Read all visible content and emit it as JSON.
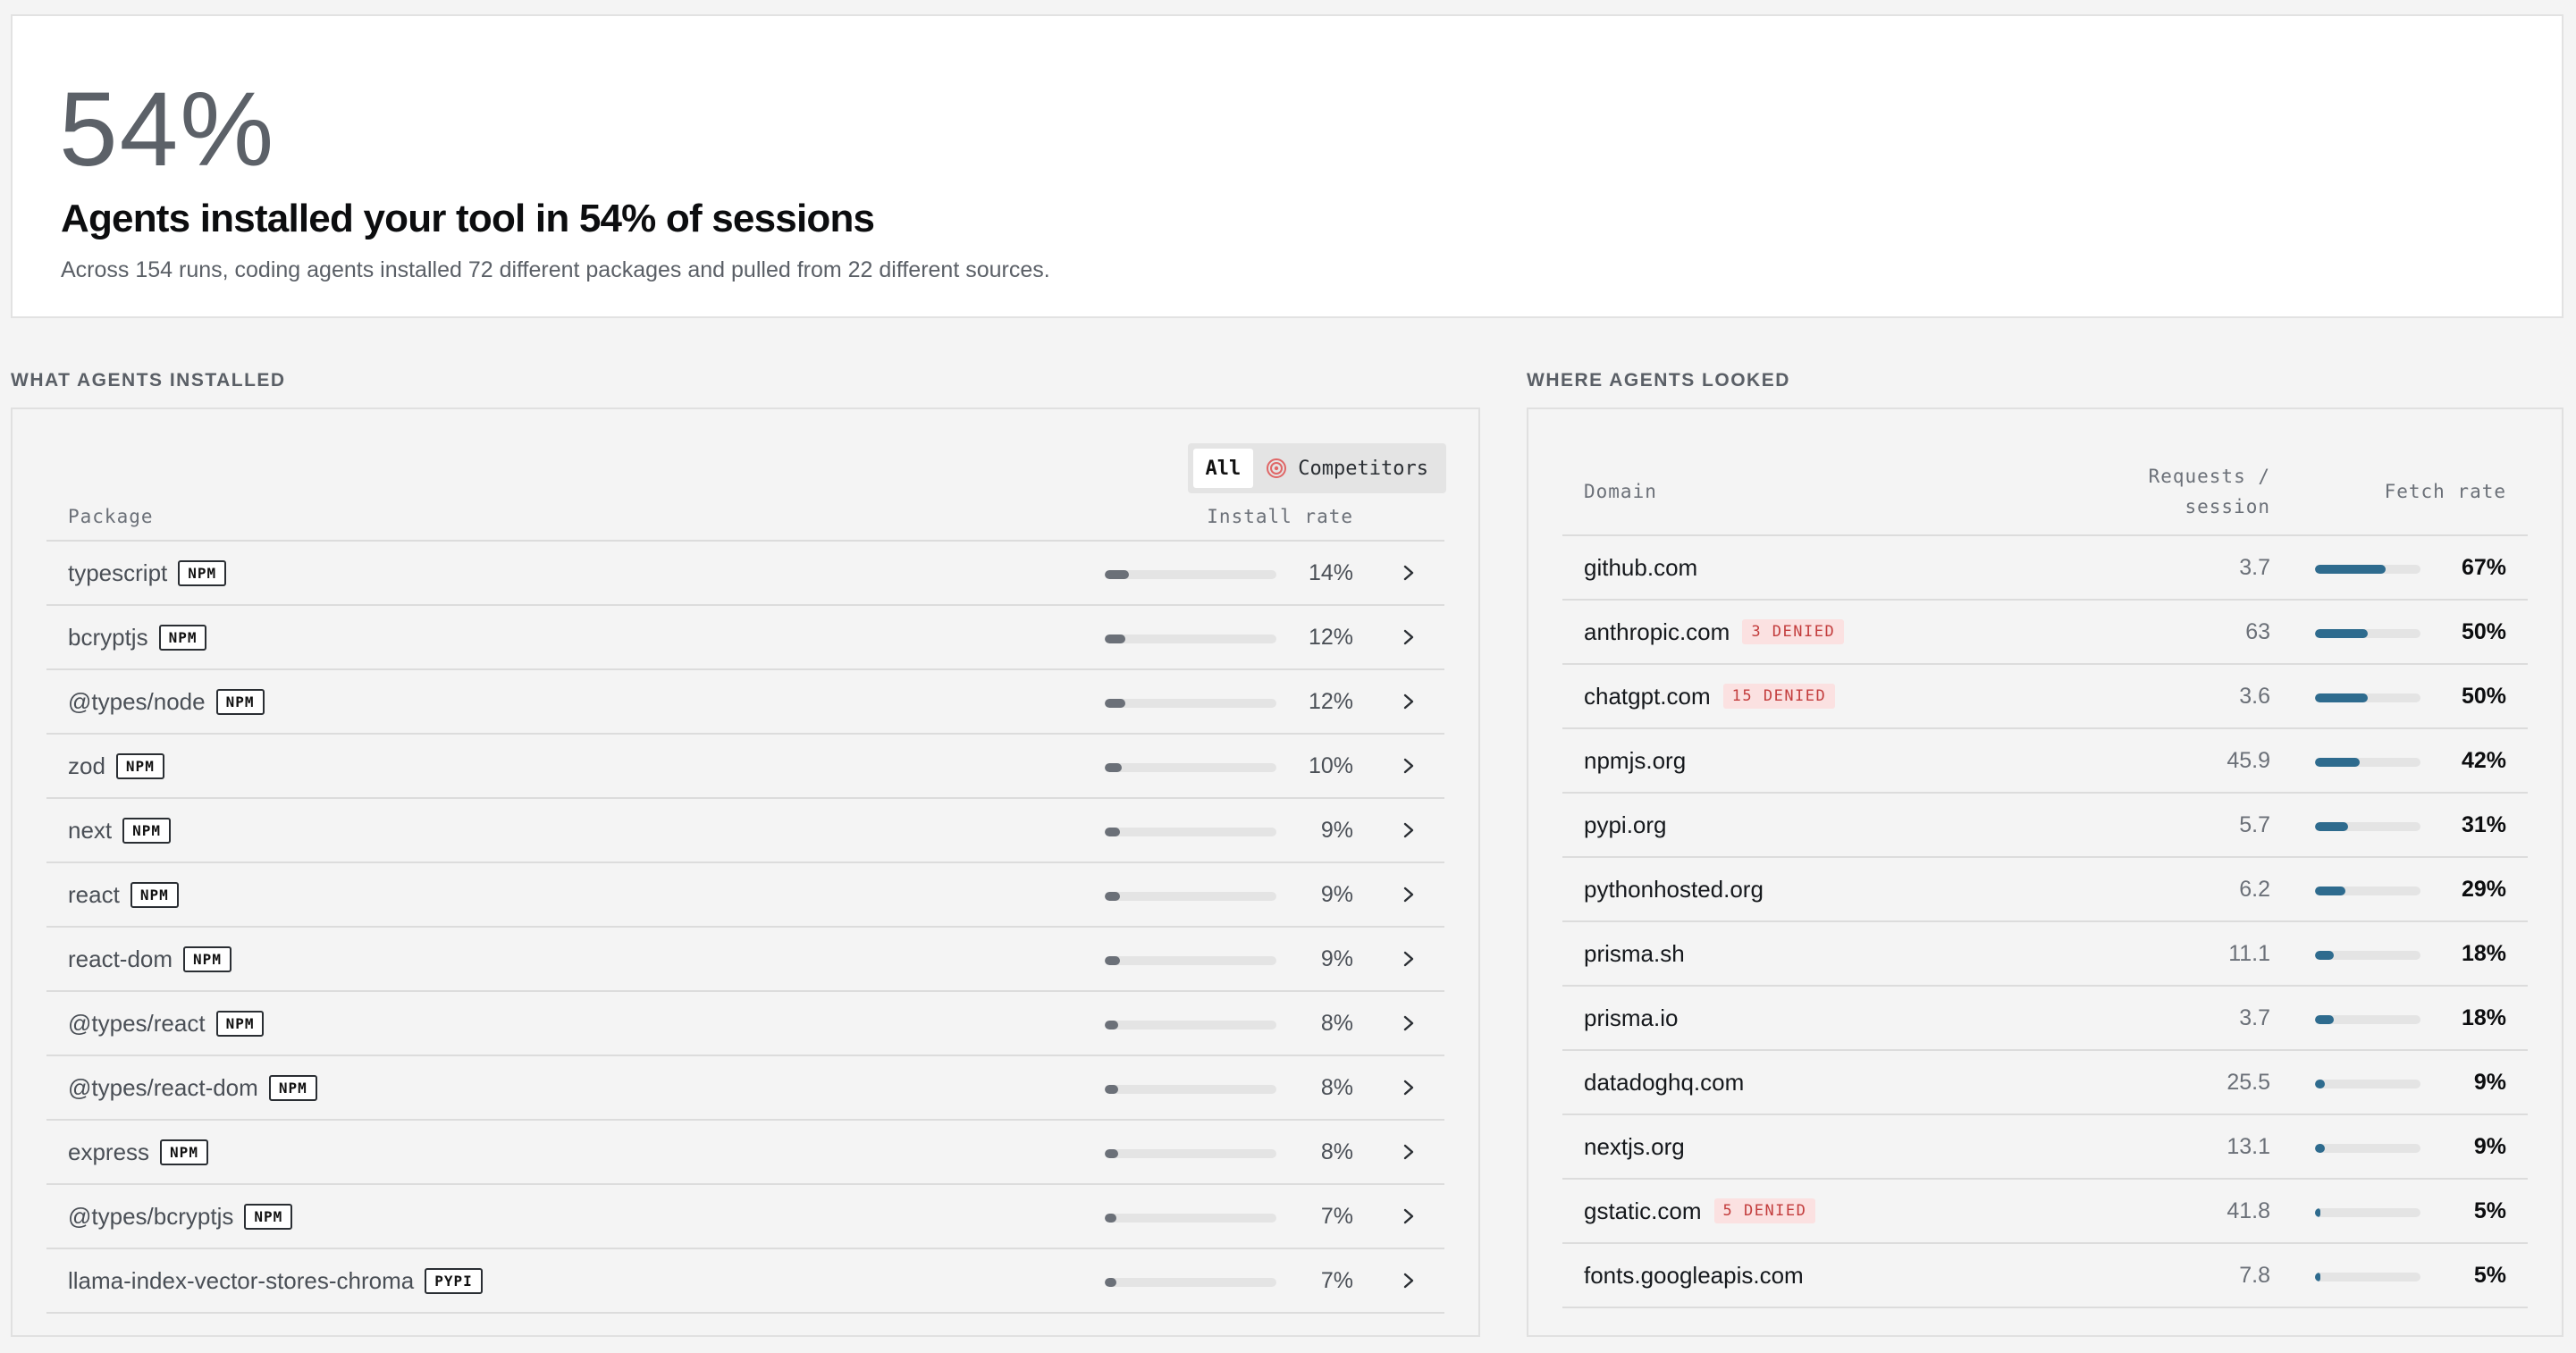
{
  "hero": {
    "percent": "54%",
    "title": "Agents installed your tool in 54% of sessions",
    "subtitle": "Across 154 runs, coding agents installed 72 different packages and pulled from 22 different sources."
  },
  "installed": {
    "section_label": "WHAT AGENTS INSTALLED",
    "filter": {
      "all_label": "All",
      "competitors_label": "Competitors",
      "active": "All"
    },
    "columns": {
      "package": "Package",
      "rate": "Install rate"
    },
    "rows": [
      {
        "name": "typescript",
        "registry": "NPM",
        "rate": "14%",
        "value": 14
      },
      {
        "name": "bcryptjs",
        "registry": "NPM",
        "rate": "12%",
        "value": 12
      },
      {
        "name": "@types/node",
        "registry": "NPM",
        "rate": "12%",
        "value": 12
      },
      {
        "name": "zod",
        "registry": "NPM",
        "rate": "10%",
        "value": 10
      },
      {
        "name": "next",
        "registry": "NPM",
        "rate": "9%",
        "value": 9
      },
      {
        "name": "react",
        "registry": "NPM",
        "rate": "9%",
        "value": 9
      },
      {
        "name": "react-dom",
        "registry": "NPM",
        "rate": "9%",
        "value": 9
      },
      {
        "name": "@types/react",
        "registry": "NPM",
        "rate": "8%",
        "value": 8
      },
      {
        "name": "@types/react-dom",
        "registry": "NPM",
        "rate": "8%",
        "value": 8
      },
      {
        "name": "express",
        "registry": "NPM",
        "rate": "8%",
        "value": 8
      },
      {
        "name": "@types/bcryptjs",
        "registry": "NPM",
        "rate": "7%",
        "value": 7
      },
      {
        "name": "llama-index-vector-stores-chroma",
        "registry": "PYPI",
        "rate": "7%",
        "value": 7
      }
    ]
  },
  "looked": {
    "section_label": "WHERE AGENTS LOOKED",
    "columns": {
      "domain": "Domain",
      "requests_line1": "Requests /",
      "requests_line2": "session",
      "fetch": "Fetch rate"
    },
    "rows": [
      {
        "domain": "github.com",
        "denied": "",
        "requests": "3.7",
        "rate": "67%",
        "value": 67
      },
      {
        "domain": "anthropic.com",
        "denied": "3 DENIED",
        "requests": "63",
        "rate": "50%",
        "value": 50
      },
      {
        "domain": "chatgpt.com",
        "denied": "15 DENIED",
        "requests": "3.6",
        "rate": "50%",
        "value": 50
      },
      {
        "domain": "npmjs.org",
        "denied": "",
        "requests": "45.9",
        "rate": "42%",
        "value": 42
      },
      {
        "domain": "pypi.org",
        "denied": "",
        "requests": "5.7",
        "rate": "31%",
        "value": 31
      },
      {
        "domain": "pythonhosted.org",
        "denied": "",
        "requests": "6.2",
        "rate": "29%",
        "value": 29
      },
      {
        "domain": "prisma.sh",
        "denied": "",
        "requests": "11.1",
        "rate": "18%",
        "value": 18
      },
      {
        "domain": "prisma.io",
        "denied": "",
        "requests": "3.7",
        "rate": "18%",
        "value": 18
      },
      {
        "domain": "datadoghq.com",
        "denied": "",
        "requests": "25.5",
        "rate": "9%",
        "value": 9
      },
      {
        "domain": "nextjs.org",
        "denied": "",
        "requests": "13.1",
        "rate": "9%",
        "value": 9
      },
      {
        "domain": "gstatic.com",
        "denied": "5 DENIED",
        "requests": "41.8",
        "rate": "5%",
        "value": 5
      },
      {
        "domain": "fonts.googleapis.com",
        "denied": "",
        "requests": "7.8",
        "rate": "5%",
        "value": 5
      }
    ]
  },
  "colors": {
    "install_bar": "#6b7078",
    "fetch_bar": "#2e6b8e",
    "denied_bg": "#fbe1e1",
    "denied_text": "#c33d3d"
  },
  "icons": {
    "competitors": "target-icon",
    "row_action": "chevron-right-icon"
  }
}
